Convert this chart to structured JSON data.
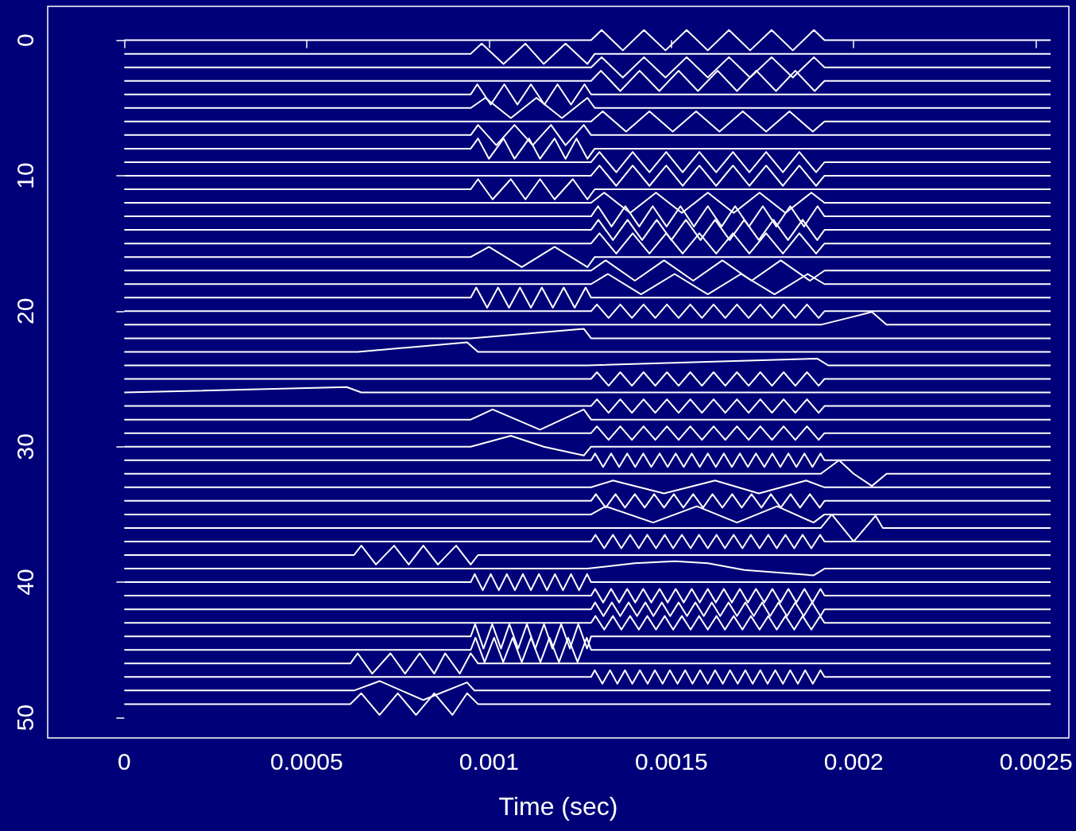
{
  "chart_data": {
    "type": "line",
    "xlabel": "Time (sec)",
    "color": "#ffffff",
    "marker": "none",
    "line_style": "solid",
    "xlim": [
      -0.00021,
      0.00259
    ],
    "xticks": [
      0,
      0.0005,
      0.001,
      0.0015,
      0.002,
      0.0025
    ],
    "ylim": [
      51.5,
      -2.5
    ],
    "yticks": [
      0,
      10,
      20,
      30,
      40,
      50
    ],
    "series": [
      {
        "x": [
          0,
          0.00128,
          0.001309,
          0.001367,
          0.001425,
          0.001484,
          0.001542,
          0.0016,
          0.001658,
          0.001716,
          0.001775,
          0.001833,
          0.001891,
          0.00192,
          0.00254
        ],
        "values": [
          0,
          0,
          -0.75,
          0.75,
          -0.75,
          0.75,
          -0.75,
          0.75,
          -0.75,
          0.75,
          -0.75,
          0.75,
          -0.75,
          0,
          0
        ]
      },
      {
        "x": [
          0,
          0.00095,
          0.00098,
          0.00104,
          0.0011,
          0.00115,
          0.00121,
          0.00127,
          0.00129,
          0.00254
        ],
        "values": [
          1,
          1,
          0.25,
          1.75,
          0.25,
          1.75,
          0.25,
          1.75,
          1,
          1
        ]
      },
      {
        "x": [
          0,
          0.00128,
          0.001309,
          0.001367,
          0.001425,
          0.001484,
          0.001542,
          0.0016,
          0.001658,
          0.001716,
          0.001775,
          0.001833,
          0.001891,
          0.00192,
          0.00254
        ],
        "values": [
          2,
          2,
          1.25,
          2.75,
          1.25,
          2.75,
          1.25,
          2.75,
          1.25,
          2.75,
          1.25,
          2.75,
          1.25,
          2,
          2
        ]
      },
      {
        "x": [
          0,
          0.00128,
          0.001307,
          0.00136,
          0.001413,
          0.001467,
          0.00152,
          0.001573,
          0.001627,
          0.00168,
          0.001733,
          0.001787,
          0.00184,
          0.001893,
          0.00192,
          0.00254
        ],
        "values": [
          3,
          3,
          2.25,
          3.75,
          2.25,
          3.75,
          2.25,
          3.75,
          2.25,
          3.75,
          2.25,
          3.75,
          2.25,
          3.75,
          3,
          3
        ]
      },
      {
        "x": [
          0,
          0.00095,
          0.000968,
          0.001005,
          0.001042,
          0.001078,
          0.001115,
          0.001152,
          0.001188,
          0.001225,
          0.001262,
          0.00128,
          0.00254
        ],
        "values": [
          4,
          4,
          3.25,
          4.75,
          3.25,
          4.75,
          3.25,
          4.75,
          3.25,
          4.75,
          3.25,
          4,
          4
        ]
      },
      {
        "x": [
          0,
          0.00095,
          0.00099,
          0.00106,
          0.00113,
          0.0012,
          0.00127,
          0.00129,
          0.00254
        ],
        "values": [
          5,
          5,
          4.25,
          5.75,
          4.25,
          5.75,
          4.25,
          5,
          5
        ]
      },
      {
        "x": [
          0,
          0.00128,
          0.001312,
          0.001376,
          0.00144,
          0.001504,
          0.001568,
          0.001632,
          0.001696,
          0.00176,
          0.001824,
          0.001888,
          0.00192,
          0.00254
        ],
        "values": [
          6,
          6,
          5.25,
          6.75,
          5.25,
          6.75,
          5.25,
          6.75,
          5.25,
          6.75,
          5.25,
          6.75,
          6,
          6
        ]
      },
      {
        "x": [
          0,
          0.00095,
          0.00097,
          0.00102,
          0.00107,
          0.00112,
          0.00117,
          0.00121,
          0.00126,
          0.00128,
          0.00254
        ],
        "values": [
          7,
          7,
          6.25,
          7.75,
          6.25,
          7.75,
          6.25,
          7.75,
          6.25,
          7,
          7
        ]
      },
      {
        "x": [
          0,
          0.00095,
          0.00097,
          0.001,
          0.00104,
          0.00107,
          0.00111,
          0.00114,
          0.00118,
          0.00121,
          0.00124,
          0.00127,
          0.00129,
          0.00254
        ],
        "values": [
          8,
          8,
          7.25,
          8.75,
          7.25,
          8.75,
          7.25,
          8.75,
          7.25,
          8.75,
          7.25,
          8.75,
          8,
          8
        ]
      },
      {
        "x": [
          0,
          0.00128,
          0.001303,
          0.001349,
          0.001394,
          0.00144,
          0.001486,
          0.001531,
          0.001577,
          0.001623,
          0.001669,
          0.001714,
          0.00176,
          0.001806,
          0.001851,
          0.001897,
          0.00192,
          0.00254
        ],
        "values": [
          9,
          9,
          8.25,
          9.75,
          8.25,
          9.75,
          8.25,
          9.75,
          8.25,
          9.75,
          8.25,
          9.75,
          8.25,
          9.75,
          8.25,
          9.75,
          9,
          9
        ]
      },
      {
        "x": [
          0,
          0.00128,
          0.001303,
          0.001349,
          0.001394,
          0.00144,
          0.001486,
          0.001531,
          0.001577,
          0.001623,
          0.001669,
          0.001714,
          0.00176,
          0.001806,
          0.001851,
          0.001897,
          0.00192,
          0.00254
        ],
        "values": [
          10,
          10,
          9.25,
          10.75,
          9.25,
          10.75,
          9.25,
          10.75,
          9.25,
          10.75,
          9.25,
          10.75,
          9.25,
          10.75,
          9.25,
          10.75,
          10,
          10
        ]
      },
      {
        "x": [
          0,
          0.00095,
          0.00097,
          0.00101,
          0.00106,
          0.0011,
          0.00114,
          0.00118,
          0.00123,
          0.00127,
          0.00129,
          0.00254
        ],
        "values": [
          11,
          11,
          10.25,
          11.75,
          10.25,
          11.75,
          10.25,
          11.75,
          10.25,
          11.75,
          11,
          11
        ]
      },
      {
        "x": [
          0,
          0.00128,
          0.001316,
          0.001387,
          0.001458,
          0.001529,
          0.0016,
          0.001671,
          0.001742,
          0.001813,
          0.001884,
          0.00192,
          0.00254
        ],
        "values": [
          12,
          12,
          11.25,
          12.75,
          11.25,
          12.75,
          11.25,
          12.75,
          11.25,
          12.75,
          11.25,
          12,
          12
        ]
      },
      {
        "x": [
          0,
          0.00128,
          0.001299,
          0.001336,
          0.001374,
          0.001412,
          0.001449,
          0.001487,
          0.001525,
          0.001562,
          0.0016,
          0.001638,
          0.001675,
          0.001713,
          0.001751,
          0.001788,
          0.001826,
          0.001864,
          0.001901,
          0.00192,
          0.00254
        ],
        "values": [
          13,
          13,
          12.25,
          13.75,
          12.25,
          13.75,
          12.25,
          13.75,
          12.25,
          13.75,
          12.25,
          13.75,
          12.25,
          13.75,
          12.25,
          13.75,
          12.25,
          13.75,
          12.25,
          13,
          13
        ]
      },
      {
        "x": [
          0,
          0.00128,
          0.0013,
          0.00134,
          0.00138,
          0.00142,
          0.00146,
          0.0015,
          0.00154,
          0.00158,
          0.00162,
          0.00166,
          0.0017,
          0.00174,
          0.00178,
          0.00182,
          0.00186,
          0.0019,
          0.00192,
          0.00254
        ],
        "values": [
          14,
          14,
          13.25,
          14.75,
          13.25,
          14.75,
          13.25,
          14.75,
          13.25,
          14.75,
          13.25,
          14.75,
          13.25,
          14.75,
          13.25,
          14.75,
          13.25,
          14.75,
          14,
          14
        ]
      },
      {
        "x": [
          0,
          0.00128,
          0.001303,
          0.001349,
          0.001394,
          0.00144,
          0.001486,
          0.001531,
          0.001577,
          0.001623,
          0.001669,
          0.001714,
          0.00176,
          0.001806,
          0.001851,
          0.001897,
          0.00192,
          0.00254
        ],
        "values": [
          15,
          15,
          14.25,
          15.75,
          14.25,
          15.75,
          14.25,
          15.75,
          14.25,
          15.75,
          14.25,
          15.75,
          14.25,
          15.75,
          14.25,
          15.75,
          15,
          15
        ]
      },
      {
        "x": [
          0,
          0.00095,
          0.001,
          0.00109,
          0.00118,
          0.00127,
          0.00129,
          0.00254
        ],
        "values": [
          16,
          16,
          15.25,
          16.75,
          15.25,
          16.75,
          16,
          16
        ]
      },
      {
        "x": [
          0,
          0.00128,
          0.00132,
          0.0014,
          0.00148,
          0.00156,
          0.00164,
          0.00172,
          0.0018,
          0.00188,
          0.00192,
          0.00254
        ],
        "values": [
          17,
          17,
          16.25,
          17.75,
          16.25,
          17.75,
          16.25,
          17.75,
          16.25,
          17.75,
          17,
          17
        ]
      },
      {
        "x": [
          0,
          0.00128,
          0.001326,
          0.001417,
          0.001509,
          0.0016,
          0.001691,
          0.001783,
          0.001874,
          0.00192,
          0.00254
        ],
        "values": [
          18,
          18,
          17.25,
          18.75,
          17.25,
          18.75,
          17.25,
          18.75,
          17.25,
          18,
          18
        ]
      },
      {
        "x": [
          0,
          0.00095,
          0.000965,
          0.000995,
          0.001025,
          0.001055,
          0.001085,
          0.001115,
          0.001145,
          0.001175,
          0.001205,
          0.001235,
          0.001265,
          0.00128,
          0.00254
        ],
        "values": [
          19,
          19,
          18.25,
          19.75,
          18.25,
          19.75,
          18.25,
          19.75,
          18.25,
          19.75,
          18.25,
          19.75,
          18.25,
          19,
          19
        ]
      },
      {
        "x": [
          0,
          0.00128,
          0.001296,
          0.001328,
          0.00136,
          0.001392,
          0.001424,
          0.001456,
          0.001488,
          0.00152,
          0.001552,
          0.001584,
          0.001616,
          0.001648,
          0.00168,
          0.001712,
          0.001744,
          0.001776,
          0.001808,
          0.00184,
          0.001872,
          0.001904,
          0.00192,
          0.00254
        ],
        "values": [
          20,
          20,
          19.5,
          20.5,
          19.5,
          20.5,
          19.5,
          20.5,
          19.5,
          20.5,
          19.5,
          20.5,
          19.5,
          20.5,
          19.5,
          20.5,
          19.5,
          20.5,
          19.5,
          20.5,
          19.5,
          20.5,
          20,
          20
        ]
      },
      {
        "x": [
          0,
          0.00191,
          0.002,
          0.00205,
          0.00209,
          0.00254
        ],
        "values": [
          21,
          21,
          20.4,
          20.05,
          21,
          21
        ]
      },
      {
        "x": [
          0,
          0.00095,
          0.00126,
          0.00128,
          0.00254
        ],
        "values": [
          22,
          22,
          21.3,
          22,
          22
        ]
      },
      {
        "x": [
          0,
          0.00064,
          0.00094,
          0.00097,
          0.00254
        ],
        "values": [
          23,
          23,
          22.3,
          23,
          23
        ]
      },
      {
        "x": [
          0,
          0.00127,
          0.0019,
          0.00193,
          0.00254
        ],
        "values": [
          24,
          24,
          23.5,
          24,
          24
        ]
      },
      {
        "x": [
          0,
          0.00128,
          0.001296,
          0.001328,
          0.00136,
          0.001392,
          0.001424,
          0.001456,
          0.001488,
          0.00152,
          0.001552,
          0.001584,
          0.001616,
          0.001648,
          0.00168,
          0.001712,
          0.001744,
          0.001776,
          0.001808,
          0.00184,
          0.001872,
          0.001904,
          0.00192,
          0.00254
        ],
        "values": [
          25,
          25,
          24.5,
          25.5,
          24.5,
          25.5,
          24.5,
          25.5,
          24.5,
          25.5,
          24.5,
          25.5,
          24.5,
          25.5,
          24.5,
          25.5,
          24.5,
          25.5,
          24.5,
          25.5,
          24.5,
          25.5,
          25,
          25
        ]
      },
      {
        "x": [
          0,
          0.00061,
          0.00065,
          0.00254
        ],
        "values": [
          26,
          25.6,
          26,
          26
        ]
      },
      {
        "x": [
          0,
          0.00128,
          0.001296,
          0.001328,
          0.00136,
          0.001392,
          0.001424,
          0.001456,
          0.001488,
          0.00152,
          0.001552,
          0.001584,
          0.001616,
          0.001648,
          0.00168,
          0.001712,
          0.001744,
          0.001776,
          0.001808,
          0.00184,
          0.001872,
          0.001904,
          0.00192,
          0.00254
        ],
        "values": [
          27,
          27,
          26.5,
          27.5,
          26.5,
          27.5,
          26.5,
          27.5,
          26.5,
          27.5,
          26.5,
          27.5,
          26.5,
          27.5,
          26.5,
          27.5,
          26.5,
          27.5,
          26.5,
          27.5,
          26.5,
          27.5,
          27,
          27
        ]
      },
      {
        "x": [
          0,
          0.00095,
          0.00101,
          0.00114,
          0.00126,
          0.00128,
          0.00254
        ],
        "values": [
          28,
          28,
          27.25,
          28.75,
          27.25,
          28,
          28
        ]
      },
      {
        "x": [
          0,
          0.00128,
          0.001296,
          0.001328,
          0.00136,
          0.001392,
          0.001424,
          0.001456,
          0.001488,
          0.00152,
          0.001552,
          0.001584,
          0.001616,
          0.001648,
          0.00168,
          0.001712,
          0.001744,
          0.001776,
          0.001808,
          0.00184,
          0.001872,
          0.001904,
          0.00192,
          0.00254
        ],
        "values": [
          29,
          29,
          28.5,
          29.5,
          28.5,
          29.5,
          28.5,
          29.5,
          28.5,
          29.5,
          28.5,
          29.5,
          28.5,
          29.5,
          28.5,
          29.5,
          28.5,
          29.5,
          28.5,
          29.5,
          28.5,
          29.5,
          29,
          29
        ]
      },
      {
        "x": [
          0,
          0.00095,
          0.00106,
          0.00115,
          0.00126,
          0.00128,
          0.00254
        ],
        "values": [
          30,
          30,
          29.2,
          30,
          30.65,
          30,
          30
        ]
      },
      {
        "x": [
          0,
          0.00128,
          0.001291,
          0.001313,
          0.001335,
          0.001357,
          0.001379,
          0.001401,
          0.001423,
          0.001445,
          0.001468,
          0.00149,
          0.001512,
          0.001534,
          0.001556,
          0.001578,
          0.0016,
          0.001622,
          0.001644,
          0.001666,
          0.001688,
          0.00171,
          0.001732,
          0.001755,
          0.001777,
          0.001799,
          0.001821,
          0.001843,
          0.001865,
          0.001887,
          0.001909,
          0.00192,
          0.00254
        ],
        "values": [
          31,
          31,
          30.5,
          31.5,
          30.5,
          31.5,
          30.5,
          31.5,
          30.5,
          31.5,
          30.5,
          31.5,
          30.5,
          31.5,
          30.5,
          31.5,
          30.5,
          31.5,
          30.5,
          31.5,
          30.5,
          31.5,
          30.5,
          31.5,
          30.5,
          31.5,
          30.5,
          31.5,
          30.5,
          31.5,
          30.5,
          31,
          31
        ]
      },
      {
        "x": [
          0,
          0.00191,
          0.00196,
          0.002,
          0.00205,
          0.00209,
          0.00254
        ],
        "values": [
          32,
          32,
          31,
          32,
          32.9,
          32,
          32
        ]
      },
      {
        "x": [
          0,
          0.00128,
          0.00134,
          0.00148,
          0.00162,
          0.00174,
          0.00187,
          0.00192,
          0.00254
        ],
        "values": [
          33,
          33,
          32.5,
          33.45,
          32.5,
          33.45,
          32.5,
          33,
          33
        ]
      },
      {
        "x": [
          0,
          0.00128,
          0.001293,
          0.00132,
          0.001347,
          0.001373,
          0.0014,
          0.001427,
          0.001453,
          0.00148,
          0.001507,
          0.001533,
          0.00156,
          0.001587,
          0.001613,
          0.00164,
          0.001667,
          0.001693,
          0.00172,
          0.001747,
          0.001773,
          0.0018,
          0.001827,
          0.001853,
          0.00188,
          0.001907,
          0.00192,
          0.00254
        ],
        "values": [
          34,
          34,
          33.5,
          34.5,
          33.5,
          34.5,
          33.5,
          34.5,
          33.5,
          34.5,
          33.5,
          34.5,
          33.5,
          34.5,
          33.5,
          34.5,
          33.5,
          34.5,
          33.5,
          34.5,
          33.5,
          34.5,
          33.5,
          34.5,
          33.5,
          34.5,
          34,
          34
        ]
      },
      {
        "x": [
          0,
          0.00128,
          0.00132,
          0.00145,
          0.00157,
          0.00168,
          0.00179,
          0.00189,
          0.00192,
          0.00254
        ],
        "values": [
          35,
          35,
          34.4,
          35.6,
          34.4,
          35.6,
          34.4,
          35.6,
          35,
          35
        ]
      },
      {
        "x": [
          0,
          0.00191,
          0.00194,
          0.002,
          0.00206,
          0.00208,
          0.00254
        ],
        "values": [
          36,
          36,
          35,
          37,
          35.1,
          36,
          36
        ]
      },
      {
        "x": [
          0,
          0.00128,
          0.001292,
          0.001316,
          0.00134,
          0.001363,
          0.001387,
          0.001411,
          0.001434,
          0.001458,
          0.001482,
          0.001505,
          0.001529,
          0.001553,
          0.001576,
          0.0016,
          0.001624,
          0.001647,
          0.001671,
          0.001695,
          0.001718,
          0.001742,
          0.001766,
          0.001789,
          0.001813,
          0.001837,
          0.00186,
          0.001884,
          0.001908,
          0.00192,
          0.00254
        ],
        "values": [
          37,
          37,
          36.5,
          37.5,
          36.5,
          37.5,
          36.5,
          37.5,
          36.5,
          37.5,
          36.5,
          37.5,
          36.5,
          37.5,
          36.5,
          37.5,
          36.5,
          37.5,
          36.5,
          37.5,
          36.5,
          37.5,
          36.5,
          37.5,
          36.5,
          37.5,
          36.5,
          37.5,
          36.5,
          37,
          37
        ]
      },
      {
        "x": [
          0,
          0.00063,
          0.00065,
          0.00069,
          0.00074,
          0.00078,
          0.00082,
          0.00086,
          0.00091,
          0.00095,
          0.00097,
          0.00254
        ],
        "values": [
          38,
          38,
          37.3,
          38.7,
          37.3,
          38.7,
          37.3,
          38.7,
          37.3,
          38.7,
          38,
          38
        ]
      },
      {
        "x": [
          0,
          0.00127,
          0.0014,
          0.00151,
          0.0016,
          0.0017,
          0.00189,
          0.00192,
          0.00254
        ],
        "values": [
          39,
          39,
          38.6,
          38.45,
          38.6,
          39.1,
          39.5,
          39,
          39
        ]
      },
      {
        "x": [
          0,
          0.00095,
          0.000961,
          0.000983,
          0.001005,
          0.001027,
          0.001049,
          0.001071,
          0.001093,
          0.001115,
          0.001137,
          0.001159,
          0.001181,
          0.001203,
          0.001225,
          0.001247,
          0.001269,
          0.00128,
          0.00254
        ],
        "values": [
          40,
          40,
          39.4,
          40.6,
          39.4,
          40.6,
          39.4,
          40.6,
          39.4,
          40.6,
          39.4,
          40.6,
          39.4,
          40.6,
          39.4,
          40.6,
          39.4,
          40,
          40
        ]
      },
      {
        "x": [
          0,
          0.00128,
          0.001291,
          0.001313,
          0.001335,
          0.001357,
          0.001379,
          0.001401,
          0.001423,
          0.001445,
          0.001468,
          0.00149,
          0.001512,
          0.001534,
          0.001556,
          0.001578,
          0.0016,
          0.001622,
          0.001644,
          0.001666,
          0.001688,
          0.00171,
          0.001732,
          0.001755,
          0.001777,
          0.001799,
          0.001821,
          0.001843,
          0.001865,
          0.001887,
          0.001909,
          0.00192,
          0.00254
        ],
        "values": [
          41,
          41,
          40.5,
          41.5,
          40.5,
          41.5,
          40.5,
          41.5,
          40.5,
          41.5,
          40.5,
          41.5,
          40.5,
          41.5,
          40.5,
          41.5,
          40.5,
          41.5,
          40.5,
          41.5,
          40.5,
          41.5,
          40.5,
          41.5,
          40.5,
          41.5,
          40.5,
          41.5,
          40.5,
          41.5,
          40.5,
          41,
          41
        ]
      },
      {
        "x": [
          0,
          0.00128,
          0.001291,
          0.001314,
          0.001337,
          0.00136,
          0.001383,
          0.001406,
          0.001429,
          0.001451,
          0.001474,
          0.001497,
          0.00152,
          0.001543,
          0.001566,
          0.001589,
          0.001611,
          0.001634,
          0.001657,
          0.00168,
          0.001703,
          0.001726,
          0.001749,
          0.001771,
          0.001794,
          0.001817,
          0.00184,
          0.001863,
          0.001886,
          0.001909,
          0.00192,
          0.00254
        ],
        "values": [
          42,
          42,
          41.5,
          42.5,
          41.5,
          42.5,
          41.5,
          42.5,
          41.5,
          42.5,
          41.5,
          42.5,
          41.5,
          42.5,
          41.5,
          42.5,
          41.5,
          42.5,
          41.5,
          42.5,
          41.5,
          42.5,
          41.5,
          42.5,
          41.5,
          42.5,
          41.5,
          42.5,
          41.5,
          42.5,
          42,
          42
        ]
      },
      {
        "x": [
          0,
          0.00128,
          0.001292,
          0.001316,
          0.00134,
          0.001363,
          0.001387,
          0.001411,
          0.001434,
          0.001458,
          0.001482,
          0.001505,
          0.001529,
          0.001553,
          0.001576,
          0.0016,
          0.001624,
          0.001647,
          0.001671,
          0.001695,
          0.001718,
          0.001742,
          0.001766,
          0.001789,
          0.001813,
          0.001837,
          0.00186,
          0.001884,
          0.001908,
          0.00192,
          0.00254
        ],
        "values": [
          43,
          43,
          42.5,
          43.5,
          42.5,
          43.5,
          42.5,
          43.5,
          42.5,
          43.5,
          42.5,
          43.5,
          42.5,
          43.5,
          42.5,
          43.5,
          42.5,
          43.5,
          42.5,
          43.5,
          42.5,
          43.5,
          42.5,
          43.5,
          42.5,
          43.5,
          42.5,
          43.5,
          42.5,
          43,
          43
        ]
      },
      {
        "x": [
          0,
          0.00095,
          0.000962,
          0.000985,
          0.001009,
          0.001033,
          0.001056,
          0.00108,
          0.001104,
          0.001127,
          0.001151,
          0.001174,
          0.001198,
          0.001222,
          0.001245,
          0.001269,
          0.00128,
          0.00254
        ],
        "values": [
          44,
          44,
          43.1,
          44.9,
          43.1,
          44.9,
          43.1,
          44.9,
          43.1,
          44.9,
          43.1,
          44.9,
          43.1,
          44.9,
          43.1,
          44.9,
          44,
          44
        ]
      },
      {
        "x": [
          0,
          0.00095,
          0.000963,
          0.000988,
          0.001014,
          0.001039,
          0.001065,
          0.00109,
          0.001115,
          0.001141,
          0.001166,
          0.001192,
          0.001217,
          0.001243,
          0.001268,
          0.00128,
          0.00254
        ],
        "values": [
          45,
          45,
          44.1,
          45.9,
          44.1,
          45.9,
          44.1,
          45.9,
          44.1,
          45.9,
          44.1,
          45.9,
          44.1,
          45.9,
          44.1,
          45,
          45
        ]
      },
      {
        "x": [
          0,
          0.00062,
          0.00064,
          0.00068,
          0.00073,
          0.00077,
          0.00081,
          0.00085,
          0.00088,
          0.00092,
          0.00095,
          0.00097,
          0.00254
        ],
        "values": [
          46,
          46,
          45.25,
          46.75,
          45.25,
          46.75,
          45.25,
          46.75,
          45.25,
          46.75,
          45.25,
          46,
          46
        ]
      },
      {
        "x": [
          0,
          0.00128,
          0.00129,
          0.001311,
          0.001332,
          0.001352,
          0.001373,
          0.001393,
          0.001414,
          0.001435,
          0.001455,
          0.001476,
          0.001496,
          0.001517,
          0.001538,
          0.001558,
          0.001579,
          0.0016,
          0.00162,
          0.001641,
          0.001661,
          0.001682,
          0.001703,
          0.001723,
          0.001744,
          0.001764,
          0.001785,
          0.001806,
          0.001826,
          0.001847,
          0.001867,
          0.001888,
          0.001909,
          0.00192,
          0.00254
        ],
        "values": [
          47,
          47,
          46.5,
          47.5,
          46.5,
          47.5,
          46.5,
          47.5,
          46.5,
          47.5,
          46.5,
          47.5,
          46.5,
          47.5,
          46.5,
          47.5,
          46.5,
          47.5,
          46.5,
          47.5,
          46.5,
          47.5,
          46.5,
          47.5,
          46.5,
          47.5,
          46.5,
          47.5,
          46.5,
          47.5,
          46.5,
          47.5,
          46.5,
          47,
          47
        ]
      },
      {
        "x": [
          0,
          0.00063,
          0.0007,
          0.00082,
          0.00094,
          0.00096,
          0.00254
        ],
        "values": [
          48,
          48,
          47.3,
          48.7,
          47.4,
          48,
          48
        ]
      },
      {
        "x": [
          0,
          0.00062,
          0.00065,
          0.0007,
          0.00075,
          0.0008,
          0.00085,
          0.0009,
          0.00094,
          0.00097,
          0.00254
        ],
        "values": [
          49,
          49,
          48.2,
          49.8,
          48.2,
          49.8,
          48.2,
          49.8,
          48.2,
          49,
          49
        ]
      }
    ]
  }
}
